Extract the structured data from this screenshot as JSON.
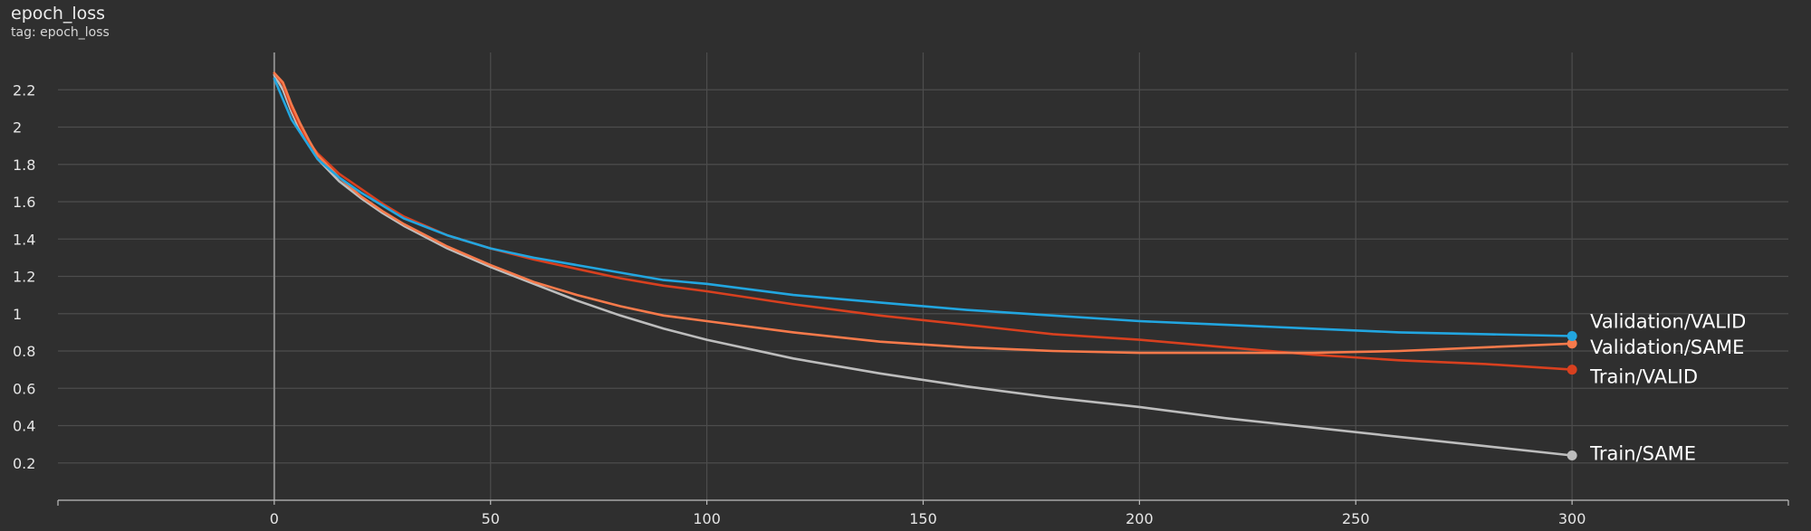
{
  "header": {
    "title": "epoch_loss",
    "subtitle": "tag: epoch_loss"
  },
  "chart_data": {
    "type": "line",
    "title": "epoch_loss",
    "subtitle": "tag: epoch_loss",
    "xlabel": "",
    "ylabel": "",
    "xlim": [
      -50,
      350
    ],
    "ylim": [
      0,
      2.4
    ],
    "xticks": [
      0,
      50,
      100,
      150,
      200,
      250,
      300
    ],
    "xtick_labels": [
      "0",
      "50",
      "100",
      "150",
      "200",
      "250",
      "300"
    ],
    "yticks": [
      0.2,
      0.4,
      0.6,
      0.8,
      1,
      1.2,
      1.4,
      1.6,
      1.8,
      2,
      2.2
    ],
    "ytick_labels": [
      "0.2",
      "0.4",
      "0.6",
      "0.8",
      "1",
      "1.2",
      "1.4",
      "1.6",
      "1.8",
      "2",
      "2.2"
    ],
    "grid": true,
    "legend": "inline-right",
    "series": [
      {
        "name": "Train/SAME",
        "color": "#bdbdbd",
        "x": [
          0,
          2,
          4,
          6,
          8,
          10,
          15,
          20,
          25,
          30,
          40,
          50,
          60,
          70,
          80,
          90,
          100,
          120,
          140,
          160,
          180,
          200,
          220,
          240,
          260,
          280,
          300
        ],
        "y": [
          2.28,
          2.2,
          2.08,
          1.98,
          1.9,
          1.83,
          1.71,
          1.62,
          1.54,
          1.47,
          1.35,
          1.25,
          1.16,
          1.07,
          0.99,
          0.92,
          0.86,
          0.76,
          0.68,
          0.61,
          0.55,
          0.5,
          0.44,
          0.39,
          0.34,
          0.29,
          0.24
        ]
      },
      {
        "name": "Train/VALID",
        "color": "#d8401f",
        "x": [
          0,
          2,
          4,
          6,
          8,
          10,
          15,
          20,
          25,
          30,
          40,
          50,
          60,
          70,
          80,
          90,
          100,
          120,
          140,
          160,
          180,
          200,
          220,
          240,
          260,
          280,
          300
        ],
        "y": [
          2.29,
          2.23,
          2.1,
          2.0,
          1.92,
          1.86,
          1.75,
          1.67,
          1.59,
          1.52,
          1.42,
          1.35,
          1.29,
          1.24,
          1.19,
          1.15,
          1.12,
          1.05,
          0.99,
          0.94,
          0.89,
          0.86,
          0.82,
          0.78,
          0.75,
          0.73,
          0.7
        ]
      },
      {
        "name": "Validation/SAME",
        "color": "#f77a4b",
        "x": [
          0,
          2,
          4,
          6,
          8,
          10,
          15,
          20,
          25,
          30,
          40,
          50,
          60,
          70,
          80,
          90,
          100,
          120,
          140,
          160,
          180,
          200,
          220,
          240,
          260,
          280,
          300
        ],
        "y": [
          2.29,
          2.24,
          2.12,
          2.02,
          1.93,
          1.85,
          1.73,
          1.63,
          1.55,
          1.48,
          1.36,
          1.26,
          1.17,
          1.1,
          1.04,
          0.99,
          0.96,
          0.9,
          0.85,
          0.82,
          0.8,
          0.79,
          0.79,
          0.79,
          0.8,
          0.82,
          0.84
        ]
      },
      {
        "name": "Validation/VALID",
        "color": "#22a6e0",
        "x": [
          0,
          2,
          4,
          6,
          8,
          10,
          15,
          20,
          25,
          30,
          40,
          50,
          60,
          70,
          80,
          90,
          100,
          120,
          140,
          160,
          180,
          200,
          220,
          240,
          260,
          280,
          300
        ],
        "y": [
          2.26,
          2.15,
          2.04,
          1.97,
          1.9,
          1.83,
          1.73,
          1.65,
          1.58,
          1.51,
          1.42,
          1.35,
          1.3,
          1.26,
          1.22,
          1.18,
          1.16,
          1.1,
          1.06,
          1.02,
          0.99,
          0.96,
          0.94,
          0.92,
          0.9,
          0.89,
          0.88
        ]
      }
    ]
  }
}
